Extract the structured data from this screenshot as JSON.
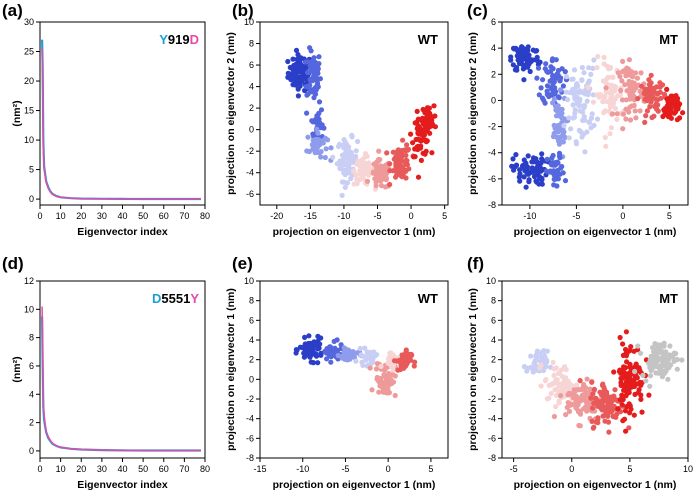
{
  "panels": [
    {
      "label": "(a)"
    },
    {
      "label": "(b)"
    },
    {
      "label": "(c)"
    },
    {
      "label": "(d)"
    },
    {
      "label": "(e)"
    },
    {
      "label": "(f)"
    }
  ],
  "colors": {
    "cyan": "#1f9ed8",
    "magenta": "#e64aa8",
    "grad": [
      "#2a3ec8",
      "#5567de",
      "#8f9ceb",
      "#c9cff4",
      "#f7d5d5",
      "#ee9a9a",
      "#e85a5a",
      "#e51c1c"
    ],
    "grey": "#c4c4c4"
  },
  "chart_data": [
    {
      "id": "a",
      "type": "line",
      "xlabel": "Eigenvector index",
      "ylabel": "(nm²)",
      "xlim": [
        0,
        80
      ],
      "ylim": [
        -1,
        30
      ],
      "xticks": [
        0,
        10,
        20,
        30,
        40,
        50,
        60,
        70,
        80
      ],
      "yticks": [
        0,
        5,
        10,
        15,
        20,
        25,
        30
      ],
      "annotation": [
        {
          "text": "Y",
          "color": "#1f9ed8"
        },
        {
          "text": "919",
          "color": "#000000"
        },
        {
          "text": "D",
          "color": "#e64aa8"
        }
      ],
      "series": [
        {
          "name": "Y",
          "color": "#1f9ed8",
          "x": [
            1,
            1.3,
            1.6,
            2,
            2.5,
            3,
            4,
            5,
            6,
            8,
            10,
            15,
            20,
            30,
            40,
            50,
            60,
            70,
            78
          ],
          "y": [
            27,
            22,
            10,
            5.6,
            4.2,
            3.0,
            2.0,
            1.3,
            0.9,
            0.5,
            0.3,
            0.15,
            0.08,
            0.05,
            0.03,
            0.02,
            0.02,
            0.02,
            0.02
          ]
        },
        {
          "name": "D",
          "color": "#e64aa8",
          "x": [
            1,
            1.3,
            1.6,
            2,
            2.5,
            3,
            4,
            5,
            6,
            8,
            10,
            15,
            20,
            30,
            40,
            50,
            60,
            70,
            78
          ],
          "y": [
            25.5,
            19,
            9,
            5.0,
            3.9,
            2.8,
            1.8,
            1.2,
            0.8,
            0.45,
            0.28,
            0.14,
            0.08,
            0.05,
            0.03,
            0.02,
            0.02,
            0.02,
            0.02
          ]
        }
      ]
    },
    {
      "id": "b",
      "type": "scatter",
      "tag": "WT",
      "xlabel": "projection on eigenvector 1 (nm)",
      "ylabel": "projection on eigenvector 2 (nm)",
      "xlim": [
        -22.5,
        5.5
      ],
      "ylim": [
        -7,
        10
      ],
      "xticks": [
        -20,
        -15,
        -10,
        -5,
        0,
        5
      ],
      "yticks": [
        -6,
        -4,
        -2,
        0,
        2,
        4,
        6,
        8,
        10
      ],
      "clusters": [
        {
          "x": -16.5,
          "y": 5.3,
          "sx": 1.2,
          "sy": 1.1,
          "n": 90,
          "color": "#2a3ec8"
        },
        {
          "x": -14.5,
          "y": 5.0,
          "sx": 0.7,
          "sy": 1.6,
          "n": 70,
          "color": "#5567de"
        },
        {
          "x": -14.0,
          "y": 0.5,
          "sx": 0.6,
          "sy": 1.2,
          "n": 35,
          "color": "#5567de"
        },
        {
          "x": -14.0,
          "y": -1.5,
          "sx": 1.0,
          "sy": 0.9,
          "n": 40,
          "color": "#8f9ceb"
        },
        {
          "x": -9.5,
          "y": -2.8,
          "sx": 1.0,
          "sy": 1.3,
          "n": 70,
          "color": "#c9cff4"
        },
        {
          "x": -7.0,
          "y": -3.8,
          "sx": 1.0,
          "sy": 0.9,
          "n": 55,
          "color": "#f7d5d5"
        },
        {
          "x": -4.5,
          "y": -4.2,
          "sx": 1.0,
          "sy": 0.9,
          "n": 60,
          "color": "#ee9a9a"
        },
        {
          "x": -1.5,
          "y": -3.0,
          "sx": 1.0,
          "sy": 1.1,
          "n": 65,
          "color": "#e85a5a"
        },
        {
          "x": 1.5,
          "y": -0.5,
          "sx": 0.9,
          "sy": 1.3,
          "n": 65,
          "color": "#e51c1c"
        },
        {
          "x": 2.5,
          "y": 1.0,
          "sx": 0.6,
          "sy": 0.8,
          "n": 40,
          "color": "#e51c1c"
        }
      ]
    },
    {
      "id": "c",
      "type": "scatter",
      "tag": "MT",
      "xlabel": "projection on eigenvector 1 (nm)",
      "ylabel": "projection on eigenvector 2 (nm)",
      "xlim": [
        -13,
        7
      ],
      "ylim": [
        -8,
        6
      ],
      "xticks": [
        -10,
        -5,
        0,
        5
      ],
      "yticks": [
        -8,
        -6,
        -4,
        -2,
        0,
        2,
        4,
        6
      ],
      "clusters": [
        {
          "x": -10.5,
          "y": 3.3,
          "sx": 1.0,
          "sy": 0.8,
          "n": 80,
          "color": "#2a3ec8"
        },
        {
          "x": -7.5,
          "y": 1.5,
          "sx": 0.8,
          "sy": 1.2,
          "n": 60,
          "color": "#5567de"
        },
        {
          "x": -7.0,
          "y": -2.0,
          "sx": 0.6,
          "sy": 1.6,
          "n": 50,
          "color": "#8f9ceb"
        },
        {
          "x": -10.0,
          "y": -5.3,
          "sx": 1.2,
          "sy": 0.8,
          "n": 70,
          "color": "#2a3ec8"
        },
        {
          "x": -7.2,
          "y": -5.5,
          "sx": 0.6,
          "sy": 0.9,
          "n": 40,
          "color": "#5567de"
        },
        {
          "x": -4.5,
          "y": 0.0,
          "sx": 1.1,
          "sy": 2.0,
          "n": 80,
          "color": "#c9cff4"
        },
        {
          "x": -1.5,
          "y": 0.5,
          "sx": 1.0,
          "sy": 1.7,
          "n": 70,
          "color": "#f7d5d5"
        },
        {
          "x": 1.0,
          "y": 0.8,
          "sx": 1.0,
          "sy": 1.4,
          "n": 70,
          "color": "#ee9a9a"
        },
        {
          "x": 3.2,
          "y": 0.3,
          "sx": 0.9,
          "sy": 0.9,
          "n": 60,
          "color": "#e85a5a"
        },
        {
          "x": 5.2,
          "y": -0.5,
          "sx": 0.6,
          "sy": 0.8,
          "n": 50,
          "color": "#e51c1c"
        }
      ]
    },
    {
      "id": "d",
      "type": "line",
      "xlabel": "Eigenvector index",
      "ylabel": "(nm²)",
      "xlim": [
        0,
        80
      ],
      "ylim": [
        -0.5,
        12
      ],
      "xticks": [
        0,
        10,
        20,
        30,
        40,
        50,
        60,
        70,
        80
      ],
      "yticks": [
        0,
        2,
        4,
        6,
        8,
        10,
        12
      ],
      "annotation": [
        {
          "text": "D",
          "color": "#1f9ed8"
        },
        {
          "text": "5551",
          "color": "#000000"
        },
        {
          "text": "Y",
          "color": "#e64aa8"
        }
      ],
      "series": [
        {
          "name": "D",
          "color": "#1f9ed8",
          "x": [
            1,
            1.3,
            1.6,
            2,
            2.5,
            3,
            4,
            5,
            6,
            8,
            10,
            15,
            20,
            30,
            40,
            50,
            60,
            70,
            78
          ],
          "y": [
            9.5,
            6,
            3.1,
            2.2,
            1.7,
            1.3,
            0.9,
            0.7,
            0.5,
            0.35,
            0.25,
            0.15,
            0.1,
            0.06,
            0.04,
            0.03,
            0.03,
            0.03,
            0.03
          ]
        },
        {
          "name": "Y",
          "color": "#e64aa8",
          "x": [
            1,
            1.3,
            1.6,
            2,
            2.5,
            3,
            4,
            5,
            6,
            8,
            10,
            15,
            20,
            30,
            40,
            50,
            60,
            70,
            78
          ],
          "y": [
            10.2,
            7,
            3.6,
            2.5,
            1.9,
            1.4,
            1.0,
            0.75,
            0.55,
            0.35,
            0.25,
            0.15,
            0.1,
            0.06,
            0.04,
            0.03,
            0.03,
            0.03,
            0.03
          ]
        }
      ]
    },
    {
      "id": "e",
      "type": "scatter",
      "tag": "WT",
      "xlabel": "projection on eigenvector 1 (nm)",
      "ylabel": "projection on eigenvector 1 (nm)",
      "xlim": [
        -15,
        7
      ],
      "ylim": [
        -8,
        10
      ],
      "xticks": [
        -15,
        -10,
        -5,
        0,
        5
      ],
      "yticks": [
        -8,
        -6,
        -4,
        -2,
        0,
        2,
        4,
        6,
        8,
        10
      ],
      "clusters": [
        {
          "x": -9.0,
          "y": 3.0,
          "sx": 0.9,
          "sy": 0.7,
          "n": 70,
          "color": "#2a3ec8"
        },
        {
          "x": -6.5,
          "y": 2.7,
          "sx": 0.8,
          "sy": 0.6,
          "n": 45,
          "color": "#5567de"
        },
        {
          "x": -4.5,
          "y": 2.5,
          "sx": 0.8,
          "sy": 0.5,
          "n": 35,
          "color": "#8f9ceb"
        },
        {
          "x": -2.5,
          "y": 2.2,
          "sx": 0.7,
          "sy": 0.5,
          "n": 25,
          "color": "#c9cff4"
        },
        {
          "x": -0.3,
          "y": 0.0,
          "sx": 0.8,
          "sy": 1.2,
          "n": 60,
          "color": "#ee9a9a"
        },
        {
          "x": 0.5,
          "y": 2.0,
          "sx": 0.7,
          "sy": 0.6,
          "n": 30,
          "color": "#f7d5d5"
        },
        {
          "x": 1.8,
          "y": 1.9,
          "sx": 0.6,
          "sy": 0.7,
          "n": 40,
          "color": "#e85a5a"
        }
      ]
    },
    {
      "id": "f",
      "type": "scatter",
      "tag": "MT",
      "xlabel": "projection on eigenvector 1 (nm)",
      "ylabel": "projection on eigenvector 1 (nm)",
      "xlim": [
        -6,
        10
      ],
      "ylim": [
        -8,
        10
      ],
      "xticks": [
        -5,
        0,
        5,
        10
      ],
      "yticks": [
        -8,
        -6,
        -4,
        -2,
        0,
        2,
        4,
        6,
        8,
        10
      ],
      "clusters": [
        {
          "x": -3.0,
          "y": 1.5,
          "sx": 0.6,
          "sy": 0.9,
          "n": 40,
          "color": "#c9cff4"
        },
        {
          "x": -1.0,
          "y": -0.5,
          "sx": 0.9,
          "sy": 1.4,
          "n": 70,
          "color": "#f7d5d5"
        },
        {
          "x": 1.0,
          "y": -2.2,
          "sx": 1.0,
          "sy": 1.4,
          "n": 90,
          "color": "#ee9a9a"
        },
        {
          "x": 3.0,
          "y": -2.5,
          "sx": 0.9,
          "sy": 1.5,
          "n": 90,
          "color": "#e85a5a"
        },
        {
          "x": 5.0,
          "y": 0.0,
          "sx": 0.8,
          "sy": 2.6,
          "n": 100,
          "color": "#e51c1c"
        },
        {
          "x": 7.5,
          "y": 2.0,
          "sx": 1.0,
          "sy": 1.2,
          "n": 90,
          "color": "#c4c4c4"
        }
      ]
    }
  ]
}
